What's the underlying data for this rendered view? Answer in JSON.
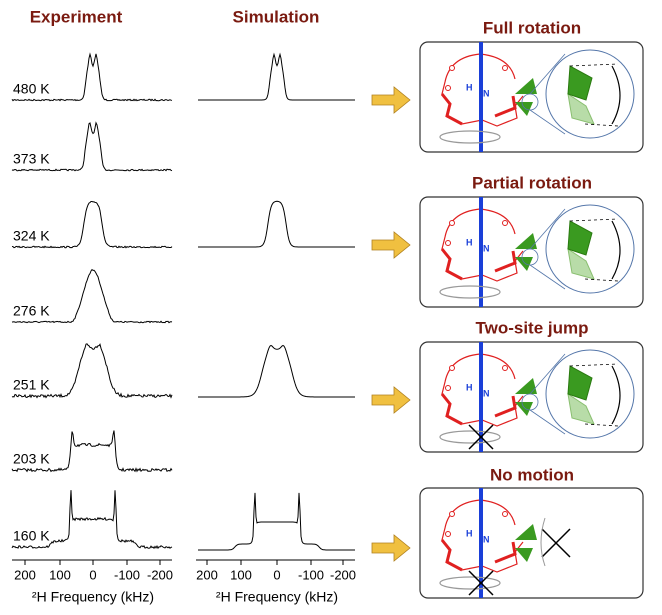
{
  "headers": {
    "experiment": "Experiment",
    "simulation": "Simulation"
  },
  "temperatures": [
    "480 K",
    "373 K",
    "324 K",
    "276 K",
    "251 K",
    "203 K",
    "160 K"
  ],
  "panels": [
    {
      "title": "Full rotation"
    },
    {
      "title": "Partial rotation"
    },
    {
      "title": "Two-site jump"
    },
    {
      "title": "No motion"
    }
  ],
  "axis": {
    "ticks": [
      "200",
      "100",
      "0",
      "-100",
      "-200"
    ],
    "label": "²H Frequency (kHz)"
  },
  "atoms": {
    "h": "H",
    "n": "N"
  }
}
